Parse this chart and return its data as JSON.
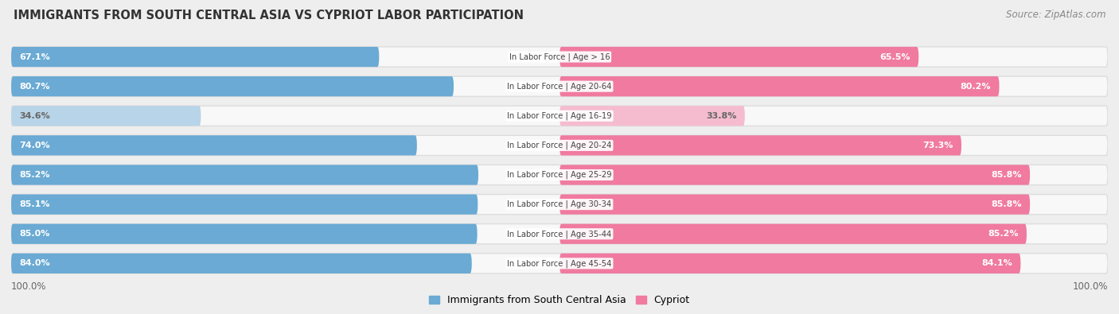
{
  "title": "IMMIGRANTS FROM SOUTH CENTRAL ASIA VS CYPRIOT LABOR PARTICIPATION",
  "source": "Source: ZipAtlas.com",
  "categories": [
    "In Labor Force | Age > 16",
    "In Labor Force | Age 20-64",
    "In Labor Force | Age 16-19",
    "In Labor Force | Age 20-24",
    "In Labor Force | Age 25-29",
    "In Labor Force | Age 30-34",
    "In Labor Force | Age 35-44",
    "In Labor Force | Age 45-54"
  ],
  "left_values": [
    67.1,
    80.7,
    34.6,
    74.0,
    85.2,
    85.1,
    85.0,
    84.0
  ],
  "right_values": [
    65.5,
    80.2,
    33.8,
    73.3,
    85.8,
    85.8,
    85.2,
    84.1
  ],
  "left_labels": [
    "67.1%",
    "80.7%",
    "34.6%",
    "74.0%",
    "85.2%",
    "85.1%",
    "85.0%",
    "84.0%"
  ],
  "right_labels": [
    "65.5%",
    "80.2%",
    "33.8%",
    "73.3%",
    "85.8%",
    "85.8%",
    "85.2%",
    "84.1%"
  ],
  "left_color_strong": "#6aaad4",
  "left_color_light": "#b8d4e8",
  "right_color_strong": "#f07aa0",
  "right_color_light": "#f5bcd0",
  "bg_color": "#eeeeee",
  "bar_bg_color": "#f8f8f8",
  "bar_border_color": "#dddddd",
  "legend_left": "Immigrants from South Central Asia",
  "legend_right": "Cypriot",
  "xlim": 100.0,
  "threshold": 60,
  "axis_label_left": "100.0%",
  "axis_label_right": "100.0%"
}
